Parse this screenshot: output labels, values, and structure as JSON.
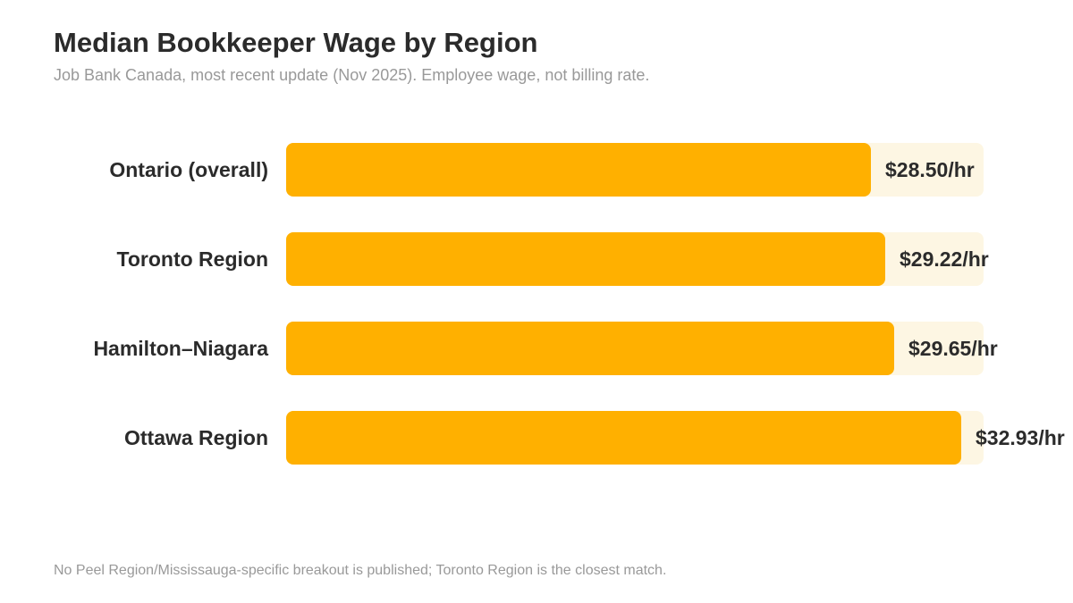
{
  "chart_data": {
    "type": "bar",
    "orientation": "horizontal",
    "title": "Median Bookkeeper Wage by Region",
    "subtitle": "Job Bank Canada, most recent update (Nov 2025). Employee wage, not billing rate.",
    "categories": [
      "Ontario (overall)",
      "Toronto Region",
      "Hamilton–Niagara",
      "Ottawa Region"
    ],
    "values": [
      28.5,
      29.22,
      29.65,
      32.93
    ],
    "value_labels": [
      "$28.50/hr",
      "$29.22/hr",
      "$29.65/hr",
      "$32.93/hr"
    ],
    "xlim": [
      0,
      34
    ],
    "xlabel": "",
    "ylabel": "",
    "grid": false,
    "legend": "none",
    "footnote": "No Peel Region/Mississauga-specific breakout is published; Toronto Region is the closest match.",
    "colors": {
      "bar": "#ffb000",
      "track": "#fdf6e3",
      "text": "#2b2b2b",
      "muted": "#999999"
    }
  }
}
